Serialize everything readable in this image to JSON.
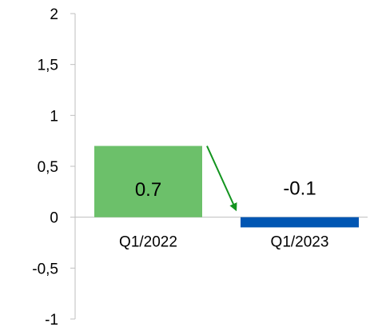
{
  "chart_data": {
    "type": "bar",
    "title": "",
    "xlabel": "",
    "ylabel": "",
    "categories": [
      "Q1/2022",
      "Q1/2023"
    ],
    "values": [
      0.7,
      -0.1
    ],
    "data_labels": [
      "0.7",
      "-0.1"
    ],
    "bar_colors": [
      "#6cc06a",
      "#0056b3"
    ],
    "ylim": [
      -1,
      2
    ],
    "yticks": [
      {
        "value": 2,
        "label": "2"
      },
      {
        "value": 1.5,
        "label": "1,5"
      },
      {
        "value": 1,
        "label": "1"
      },
      {
        "value": 0.5,
        "label": "0,5"
      },
      {
        "value": 0,
        "label": "0"
      },
      {
        "value": -0.5,
        "label": "-0,5"
      },
      {
        "value": -1,
        "label": "-1"
      }
    ],
    "grid": false,
    "legend": "none",
    "annotation": {
      "type": "arrow",
      "from": "Q1/2022",
      "to": "Q1/2023",
      "color": "#13941f"
    },
    "axis_color": "#bfbfbf"
  }
}
